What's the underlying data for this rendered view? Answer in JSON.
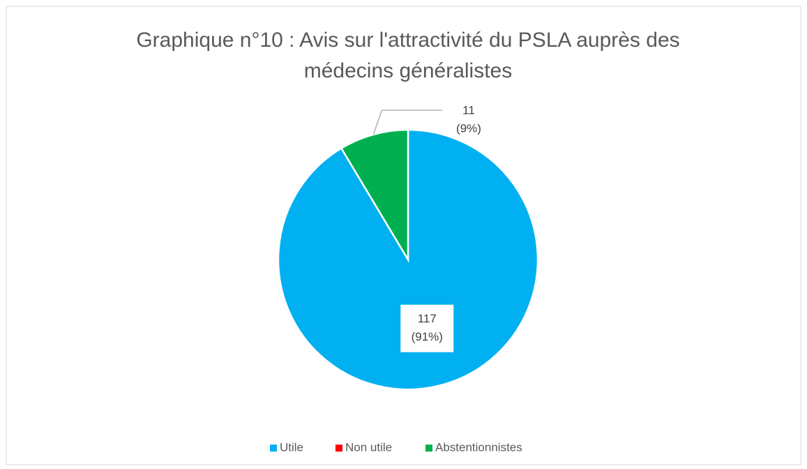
{
  "chart_data": {
    "type": "pie",
    "title": "Graphique n°10 : Avis sur l'attractivité du PSLA auprès des médecins généralistes",
    "categories": [
      "Utile",
      "Non utile",
      "Abstentionnistes"
    ],
    "values": [
      117,
      0,
      11
    ],
    "value_labels": [
      [
        "117",
        "(91%)"
      ],
      null,
      [
        "11",
        "(9%)"
      ]
    ],
    "colors": [
      "#00b0f0",
      "#ff0000",
      "#00b050"
    ],
    "legend": "bottom"
  }
}
